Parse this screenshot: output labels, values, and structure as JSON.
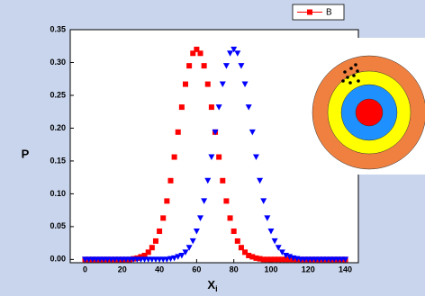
{
  "chart_data": {
    "type": "scatter",
    "x_label": "X",
    "x_label_sub": "i",
    "y_label": "P",
    "x": [
      0,
      2,
      4,
      6,
      8,
      10,
      12,
      14,
      16,
      18,
      20,
      22,
      24,
      26,
      28,
      30,
      32,
      34,
      36,
      38,
      40,
      42,
      44,
      46,
      48,
      50,
      52,
      54,
      56,
      58,
      60,
      62,
      64,
      66,
      68,
      70,
      72,
      74,
      76,
      78,
      80,
      82,
      84,
      86,
      88,
      90,
      92,
      94,
      96,
      98,
      100,
      102,
      104,
      106,
      108,
      110,
      112,
      114,
      116,
      118,
      120,
      122,
      124,
      126,
      128,
      130,
      132,
      134,
      136,
      138,
      140
    ],
    "series": [
      {
        "name": "B",
        "color": "#ff0000",
        "marker": "square",
        "values": [
          0,
          0,
          0,
          0,
          0,
          0,
          0,
          0,
          0,
          0,
          0,
          0,
          0,
          0.001,
          0.002,
          0.004,
          0.006,
          0.011,
          0.018,
          0.028,
          0.043,
          0.063,
          0.089,
          0.12,
          0.156,
          0.194,
          0.232,
          0.267,
          0.295,
          0.314,
          0.32,
          0.314,
          0.295,
          0.267,
          0.232,
          0.194,
          0.156,
          0.12,
          0.089,
          0.063,
          0.043,
          0.028,
          0.018,
          0.011,
          0.006,
          0.004,
          0.002,
          0.001,
          0,
          0,
          0,
          0,
          0,
          0,
          0,
          0,
          0,
          0,
          0,
          0,
          0,
          0,
          0,
          0,
          0,
          0,
          0,
          0,
          0,
          0,
          0
        ]
      },
      {
        "color": "#0000ff",
        "marker": "triangle-down",
        "values": [
          0,
          0,
          0,
          0,
          0,
          0,
          0,
          0,
          0,
          0,
          0,
          0,
          0,
          0,
          0,
          0,
          0,
          0,
          0,
          0,
          0,
          0,
          0,
          0.001,
          0.002,
          0.004,
          0.006,
          0.011,
          0.018,
          0.028,
          0.043,
          0.063,
          0.089,
          0.12,
          0.156,
          0.194,
          0.232,
          0.267,
          0.295,
          0.314,
          0.32,
          0.314,
          0.295,
          0.267,
          0.232,
          0.194,
          0.156,
          0.12,
          0.089,
          0.063,
          0.043,
          0.028,
          0.018,
          0.011,
          0.006,
          0.004,
          0.002,
          0.001,
          0,
          0,
          0,
          0,
          0,
          0,
          0,
          0,
          0,
          0,
          0,
          0,
          0
        ]
      }
    ],
    "xlim": [
      -8,
      147
    ],
    "ylim": [
      -0.005,
      0.35
    ],
    "xticks": [
      0,
      20,
      40,
      60,
      80,
      100,
      120,
      140
    ],
    "yticks": [
      {
        "value": 0,
        "label": "0.00"
      },
      {
        "value": 0.05,
        "label": "0.05"
      },
      {
        "value": 0.1,
        "label": "0.10"
      },
      {
        "value": 0.15,
        "label": "0.15"
      },
      {
        "value": 0.2,
        "label": "0.20"
      },
      {
        "value": 0.25,
        "label": "0.25"
      },
      {
        "value": 0.3,
        "label": "0.30"
      },
      {
        "value": 0.35,
        "label": "0.35"
      }
    ],
    "legend": "top-right"
  }
}
